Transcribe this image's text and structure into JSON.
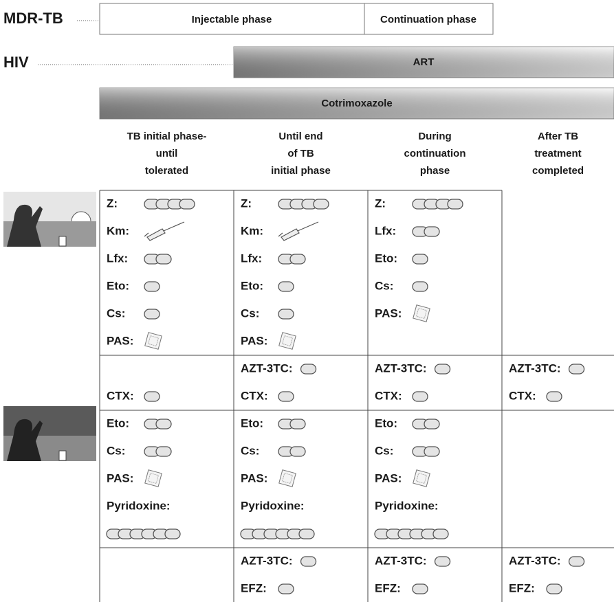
{
  "header": {
    "mdr_label": "MDR-TB",
    "phases": [
      "Injectable phase",
      "Continuation phase"
    ],
    "hiv_label": "HIV",
    "art": "ART",
    "cotrimoxazole": "Cotrimoxazole"
  },
  "table": {
    "columns": [
      [
        "TB initial phase-",
        "until",
        "tolerated"
      ],
      [
        "Until end",
        "of TB",
        "initial phase"
      ],
      [
        "During",
        "continuation",
        "phase"
      ],
      [
        "After TB",
        "treatment",
        "completed"
      ]
    ],
    "blocks": [
      {
        "cells": [
          [
            {
              "label": "Z:",
              "icon": "pill",
              "count": 4
            },
            {
              "label": "Km:",
              "icon": "syringe",
              "count": 1
            },
            {
              "label": "Lfx:",
              "icon": "pill",
              "count": 2
            },
            {
              "label": "Eto:",
              "icon": "pill",
              "count": 1
            },
            {
              "label": "Cs:",
              "icon": "pill",
              "count": 1
            },
            {
              "label": "PAS:",
              "icon": "sachet",
              "count": 1
            }
          ],
          [
            {
              "label": "Z:",
              "icon": "pill",
              "count": 4
            },
            {
              "label": "Km:",
              "icon": "syringe",
              "count": 1
            },
            {
              "label": "Lfx:",
              "icon": "pill",
              "count": 2
            },
            {
              "label": "Eto:",
              "icon": "pill",
              "count": 1
            },
            {
              "label": "Cs:",
              "icon": "pill",
              "count": 1
            },
            {
              "label": "PAS:",
              "icon": "sachet",
              "count": 1
            }
          ],
          [
            {
              "label": "Z:",
              "icon": "pill",
              "count": 4
            },
            {
              "label": "Lfx:",
              "icon": "pill",
              "count": 2
            },
            {
              "label": "Eto:",
              "icon": "pill",
              "count": 1
            },
            {
              "label": "Cs:",
              "icon": "pill",
              "count": 1
            },
            {
              "label": "PAS:",
              "icon": "sachet",
              "count": 1
            }
          ],
          []
        ]
      },
      {
        "cells": [
          [
            null,
            {
              "label": "CTX:",
              "icon": "pill",
              "count": 1
            }
          ],
          [
            {
              "label": "AZT-3TC:",
              "icon": "pill",
              "count": 1
            },
            {
              "label": "CTX:",
              "icon": "pill",
              "count": 1
            }
          ],
          [
            {
              "label": "AZT-3TC:",
              "icon": "pill",
              "count": 1
            },
            {
              "label": "CTX:",
              "icon": "pill",
              "count": 1
            }
          ],
          [
            {
              "label": "AZT-3TC:",
              "icon": "pill",
              "count": 1
            },
            {
              "label": "CTX:",
              "icon": "pill",
              "count": 1
            }
          ]
        ]
      },
      {
        "cells": [
          [
            {
              "label": "Eto:",
              "icon": "pill",
              "count": 2
            },
            {
              "label": "Cs:",
              "icon": "pill",
              "count": 2
            },
            {
              "label": "PAS:",
              "icon": "sachet",
              "count": 1
            },
            {
              "label": "Pyridoxine:",
              "icon": "pill",
              "count": 6,
              "wrap": true
            }
          ],
          [
            {
              "label": "Eto:",
              "icon": "pill",
              "count": 2
            },
            {
              "label": "Cs:",
              "icon": "pill",
              "count": 2
            },
            {
              "label": "PAS:",
              "icon": "sachet",
              "count": 1
            },
            {
              "label": "Pyridoxine:",
              "icon": "pill",
              "count": 6,
              "wrap": true
            }
          ],
          [
            {
              "label": "Eto:",
              "icon": "pill",
              "count": 2
            },
            {
              "label": "Cs:",
              "icon": "pill",
              "count": 2
            },
            {
              "label": "PAS:",
              "icon": "sachet",
              "count": 1
            },
            {
              "label": "Pyridoxine:",
              "icon": "pill",
              "count": 6,
              "wrap": true
            }
          ],
          []
        ]
      },
      {
        "cells": [
          [],
          [
            {
              "label": "AZT-3TC:",
              "icon": "pill",
              "count": 1
            },
            {
              "label": "EFZ:",
              "icon": "pill",
              "count": 1
            }
          ],
          [
            {
              "label": "AZT-3TC:",
              "icon": "pill",
              "count": 1
            },
            {
              "label": "EFZ:",
              "icon": "pill",
              "count": 1
            }
          ],
          [
            {
              "label": "AZT-3TC:",
              "icon": "pill",
              "count": 1
            },
            {
              "label": "EFZ:",
              "icon": "pill",
              "count": 1
            }
          ]
        ]
      }
    ]
  }
}
